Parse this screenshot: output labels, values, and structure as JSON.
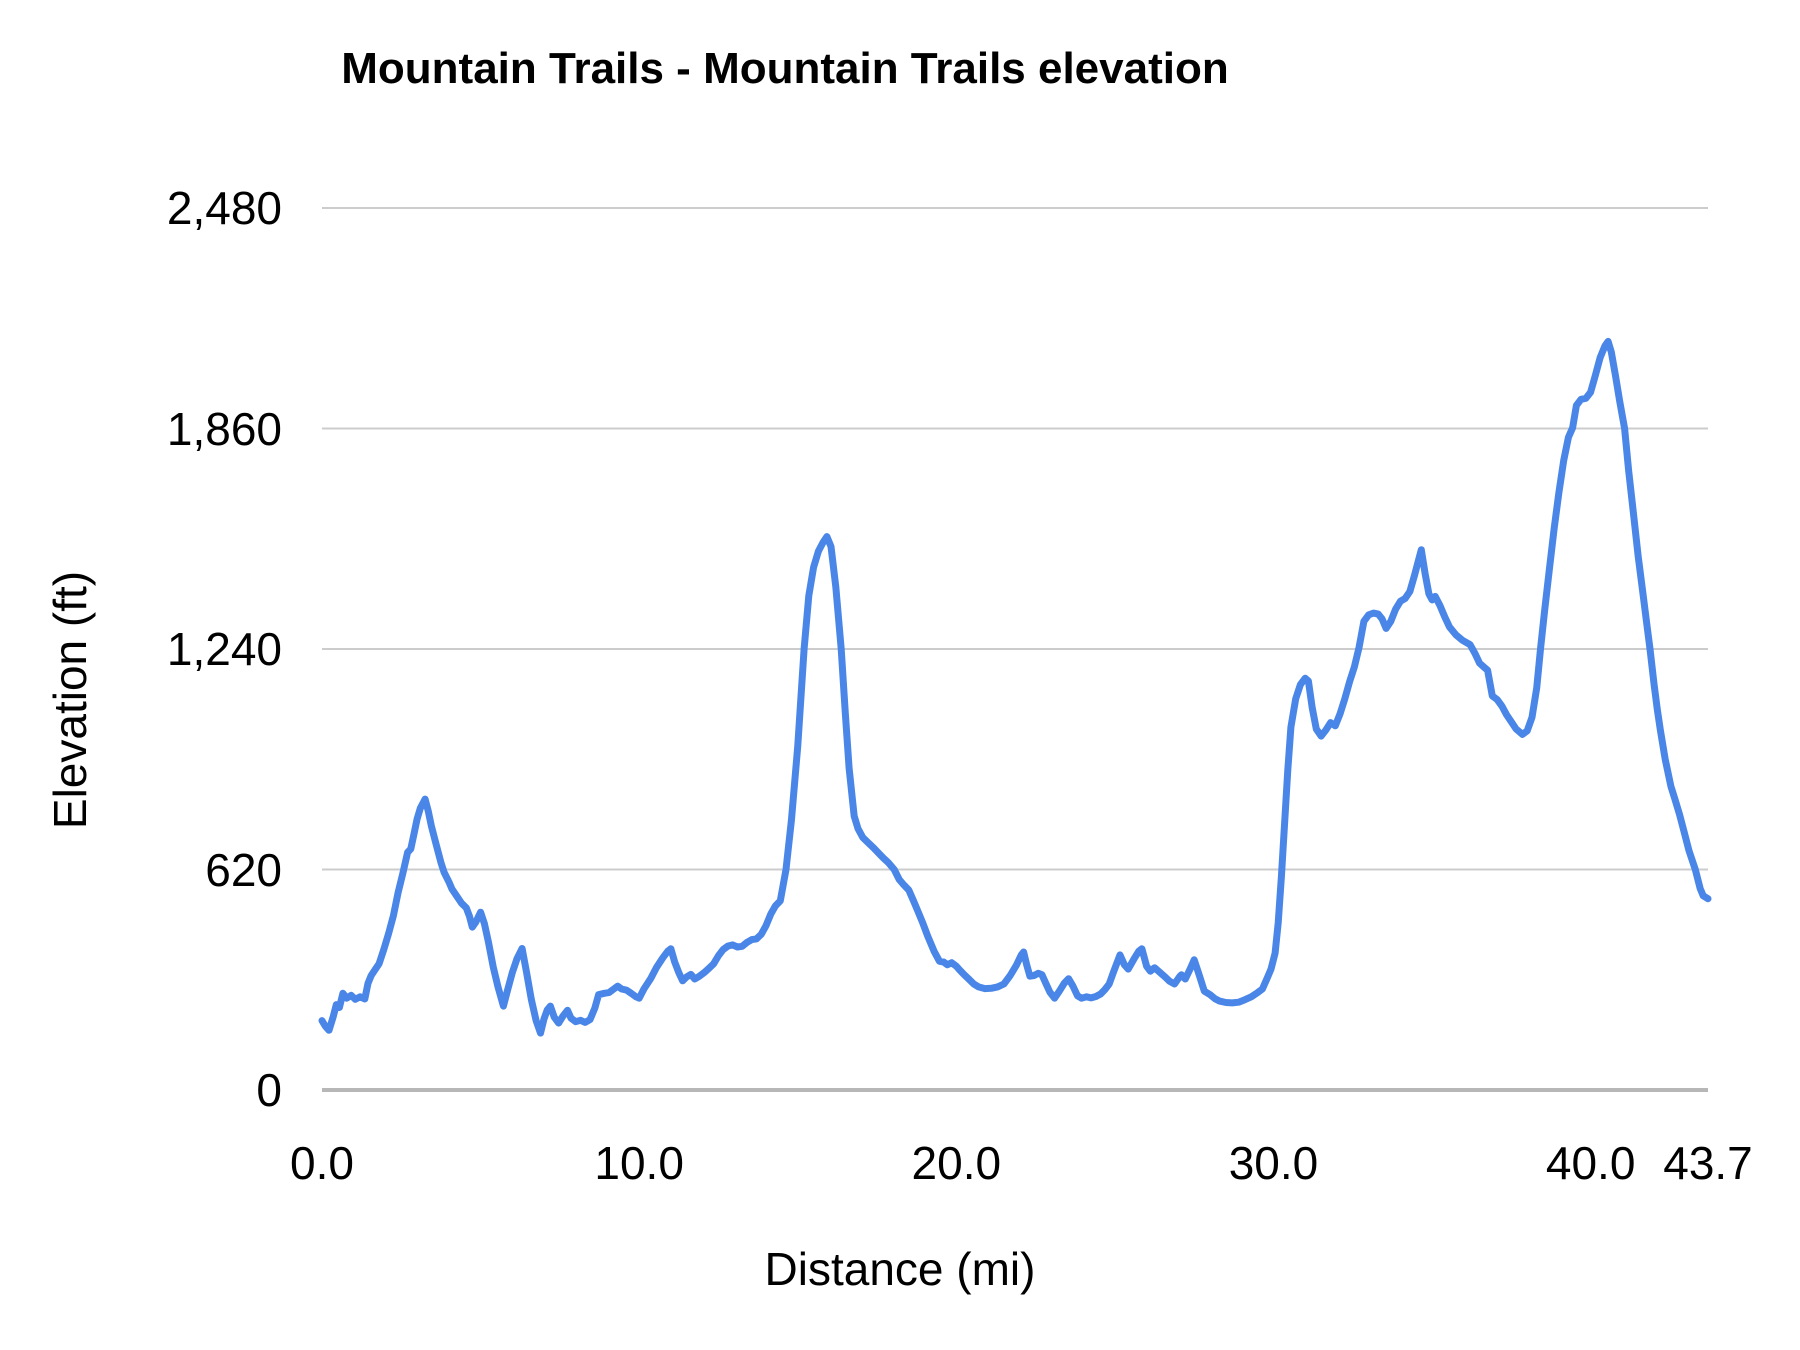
{
  "chart_data": {
    "type": "line",
    "title": "Mountain Trails - Mountain Trails elevation",
    "xlabel": "Distance (mi)",
    "ylabel": "Elevation (ft)",
    "xlim": [
      0,
      43.7
    ],
    "ylim": [
      0,
      2480
    ],
    "x_ticks": [
      "0.0",
      "10.0",
      "20.0",
      "30.0",
      "40.0",
      "43.7"
    ],
    "x_tick_values": [
      0,
      10,
      20,
      30,
      40,
      43.7
    ],
    "y_ticks": [
      "0",
      "620",
      "1,240",
      "1,860",
      "2,480"
    ],
    "y_tick_values": [
      0,
      620,
      1240,
      1860,
      2480
    ],
    "grid": "horizontal",
    "legend": "none",
    "line_color": "#4a86e8",
    "gridline_color": "#cccccc",
    "baseline_color": "#b7b7b7",
    "series": [
      {
        "name": "Mountain Trails elevation",
        "points": [
          [
            0.0,
            195
          ],
          [
            0.1,
            180
          ],
          [
            0.22,
            168
          ],
          [
            0.35,
            205
          ],
          [
            0.45,
            240
          ],
          [
            0.55,
            232
          ],
          [
            0.66,
            272
          ],
          [
            0.78,
            258
          ],
          [
            0.92,
            266
          ],
          [
            1.05,
            255
          ],
          [
            1.2,
            262
          ],
          [
            1.35,
            256
          ],
          [
            1.45,
            300
          ],
          [
            1.55,
            322
          ],
          [
            1.7,
            342
          ],
          [
            1.8,
            355
          ],
          [
            1.95,
            395
          ],
          [
            2.1,
            440
          ],
          [
            2.25,
            490
          ],
          [
            2.4,
            555
          ],
          [
            2.55,
            610
          ],
          [
            2.7,
            668
          ],
          [
            2.8,
            678
          ],
          [
            2.9,
            720
          ],
          [
            3.0,
            762
          ],
          [
            3.1,
            792
          ],
          [
            3.25,
            818
          ],
          [
            3.35,
            785
          ],
          [
            3.45,
            742
          ],
          [
            3.6,
            690
          ],
          [
            3.75,
            640
          ],
          [
            3.85,
            612
          ],
          [
            4.0,
            585
          ],
          [
            4.1,
            565
          ],
          [
            4.25,
            545
          ],
          [
            4.4,
            525
          ],
          [
            4.55,
            512
          ],
          [
            4.65,
            488
          ],
          [
            4.74,
            458
          ],
          [
            4.85,
            472
          ],
          [
            5.0,
            500
          ],
          [
            5.12,
            468
          ],
          [
            5.25,
            415
          ],
          [
            5.4,
            345
          ],
          [
            5.55,
            290
          ],
          [
            5.72,
            236
          ],
          [
            5.85,
            280
          ],
          [
            6.0,
            330
          ],
          [
            6.15,
            370
          ],
          [
            6.31,
            398
          ],
          [
            6.45,
            330
          ],
          [
            6.6,
            255
          ],
          [
            6.75,
            195
          ],
          [
            6.89,
            160
          ],
          [
            7.0,
            200
          ],
          [
            7.1,
            225
          ],
          [
            7.2,
            236
          ],
          [
            7.32,
            205
          ],
          [
            7.46,
            188
          ],
          [
            7.6,
            208
          ],
          [
            7.74,
            224
          ],
          [
            7.85,
            202
          ],
          [
            8.0,
            192
          ],
          [
            8.15,
            196
          ],
          [
            8.3,
            190
          ],
          [
            8.45,
            198
          ],
          [
            8.6,
            230
          ],
          [
            8.72,
            268
          ],
          [
            8.9,
            272
          ],
          [
            9.05,
            274
          ],
          [
            9.2,
            284
          ],
          [
            9.32,
            292
          ],
          [
            9.45,
            284
          ],
          [
            9.6,
            281
          ],
          [
            9.75,
            272
          ],
          [
            9.9,
            262
          ],
          [
            10.0,
            258
          ],
          [
            10.15,
            284
          ],
          [
            10.36,
            313
          ],
          [
            10.55,
            345
          ],
          [
            10.75,
            372
          ],
          [
            10.9,
            390
          ],
          [
            11.0,
            397
          ],
          [
            11.12,
            360
          ],
          [
            11.25,
            330
          ],
          [
            11.37,
            307
          ],
          [
            11.5,
            318
          ],
          [
            11.63,
            325
          ],
          [
            11.75,
            312
          ],
          [
            11.9,
            320
          ],
          [
            12.05,
            330
          ],
          [
            12.2,
            342
          ],
          [
            12.35,
            355
          ],
          [
            12.5,
            378
          ],
          [
            12.65,
            395
          ],
          [
            12.8,
            405
          ],
          [
            12.95,
            408
          ],
          [
            13.1,
            402
          ],
          [
            13.25,
            404
          ],
          [
            13.4,
            415
          ],
          [
            13.55,
            423
          ],
          [
            13.7,
            425
          ],
          [
            13.85,
            438
          ],
          [
            14.0,
            462
          ],
          [
            14.15,
            495
          ],
          [
            14.3,
            518
          ],
          [
            14.45,
            532
          ],
          [
            14.63,
            620
          ],
          [
            14.8,
            758
          ],
          [
            15.0,
            965
          ],
          [
            15.2,
            1240
          ],
          [
            15.35,
            1390
          ],
          [
            15.5,
            1470
          ],
          [
            15.65,
            1515
          ],
          [
            15.8,
            1540
          ],
          [
            15.92,
            1556
          ],
          [
            16.05,
            1528
          ],
          [
            16.2,
            1415
          ],
          [
            16.37,
            1240
          ],
          [
            16.5,
            1060
          ],
          [
            16.62,
            905
          ],
          [
            16.78,
            770
          ],
          [
            16.9,
            735
          ],
          [
            17.05,
            710
          ],
          [
            17.22,
            695
          ],
          [
            17.4,
            680
          ],
          [
            17.54,
            667
          ],
          [
            17.7,
            652
          ],
          [
            17.85,
            640
          ],
          [
            18.04,
            620
          ],
          [
            18.2,
            592
          ],
          [
            18.35,
            576
          ],
          [
            18.5,
            562
          ],
          [
            18.65,
            532
          ],
          [
            18.8,
            500
          ],
          [
            18.95,
            468
          ],
          [
            19.1,
            432
          ],
          [
            19.3,
            390
          ],
          [
            19.47,
            362
          ],
          [
            19.6,
            360
          ],
          [
            19.72,
            352
          ],
          [
            19.85,
            358
          ],
          [
            20.0,
            348
          ],
          [
            20.1,
            338
          ],
          [
            20.25,
            324
          ],
          [
            20.38,
            313
          ],
          [
            20.55,
            298
          ],
          [
            20.7,
            290
          ],
          [
            20.9,
            285
          ],
          [
            21.1,
            286
          ],
          [
            21.3,
            290
          ],
          [
            21.5,
            298
          ],
          [
            21.7,
            322
          ],
          [
            21.9,
            352
          ],
          [
            22.05,
            380
          ],
          [
            22.12,
            388
          ],
          [
            22.22,
            352
          ],
          [
            22.32,
            320
          ],
          [
            22.45,
            322
          ],
          [
            22.58,
            328
          ],
          [
            22.7,
            324
          ],
          [
            22.82,
            300
          ],
          [
            22.95,
            275
          ],
          [
            23.1,
            258
          ],
          [
            23.25,
            278
          ],
          [
            23.4,
            300
          ],
          [
            23.54,
            313
          ],
          [
            23.68,
            292
          ],
          [
            23.82,
            265
          ],
          [
            23.95,
            258
          ],
          [
            24.1,
            262
          ],
          [
            24.25,
            259
          ],
          [
            24.4,
            263
          ],
          [
            24.55,
            270
          ],
          [
            24.68,
            282
          ],
          [
            24.82,
            298
          ],
          [
            24.95,
            330
          ],
          [
            25.16,
            380
          ],
          [
            25.3,
            352
          ],
          [
            25.42,
            340
          ],
          [
            25.6,
            368
          ],
          [
            25.75,
            390
          ],
          [
            25.85,
            397
          ],
          [
            26.0,
            348
          ],
          [
            26.12,
            334
          ],
          [
            26.25,
            344
          ],
          [
            26.4,
            332
          ],
          [
            26.58,
            318
          ],
          [
            26.72,
            306
          ],
          [
            26.88,
            298
          ],
          [
            27.05,
            320
          ],
          [
            27.1,
            324
          ],
          [
            27.22,
            312
          ],
          [
            27.38,
            342
          ],
          [
            27.5,
            366
          ],
          [
            27.65,
            325
          ],
          [
            27.82,
            278
          ],
          [
            28.0,
            268
          ],
          [
            28.15,
            257
          ],
          [
            28.3,
            250
          ],
          [
            28.5,
            246
          ],
          [
            28.7,
            245
          ],
          [
            28.9,
            247
          ],
          [
            29.1,
            254
          ],
          [
            29.3,
            262
          ],
          [
            29.5,
            274
          ],
          [
            29.65,
            284
          ],
          [
            29.8,
            314
          ],
          [
            29.92,
            340
          ],
          [
            30.05,
            385
          ],
          [
            30.15,
            470
          ],
          [
            30.25,
            600
          ],
          [
            30.35,
            750
          ],
          [
            30.45,
            900
          ],
          [
            30.55,
            1020
          ],
          [
            30.7,
            1100
          ],
          [
            30.85,
            1140
          ],
          [
            31.0,
            1158
          ],
          [
            31.1,
            1150
          ],
          [
            31.22,
            1075
          ],
          [
            31.35,
            1015
          ],
          [
            31.5,
            995
          ],
          [
            31.65,
            1012
          ],
          [
            31.8,
            1033
          ],
          [
            31.95,
            1024
          ],
          [
            32.1,
            1058
          ],
          [
            32.25,
            1100
          ],
          [
            32.4,
            1148
          ],
          [
            32.55,
            1190
          ],
          [
            32.7,
            1245
          ],
          [
            32.85,
            1318
          ],
          [
            33.0,
            1336
          ],
          [
            33.15,
            1341
          ],
          [
            33.3,
            1338
          ],
          [
            33.42,
            1325
          ],
          [
            33.55,
            1298
          ],
          [
            33.7,
            1318
          ],
          [
            33.85,
            1352
          ],
          [
            34.0,
            1374
          ],
          [
            34.15,
            1382
          ],
          [
            34.3,
            1402
          ],
          [
            34.45,
            1448
          ],
          [
            34.55,
            1482
          ],
          [
            34.66,
            1519
          ],
          [
            34.78,
            1452
          ],
          [
            34.9,
            1395
          ],
          [
            35.0,
            1378
          ],
          [
            35.1,
            1388
          ],
          [
            35.25,
            1362
          ],
          [
            35.4,
            1330
          ],
          [
            35.55,
            1302
          ],
          [
            35.75,
            1280
          ],
          [
            35.95,
            1265
          ],
          [
            36.2,
            1252
          ],
          [
            36.35,
            1228
          ],
          [
            36.5,
            1200
          ],
          [
            36.65,
            1188
          ],
          [
            36.75,
            1180
          ],
          [
            36.9,
            1108
          ],
          [
            37.05,
            1098
          ],
          [
            37.2,
            1080
          ],
          [
            37.35,
            1055
          ],
          [
            37.5,
            1035
          ],
          [
            37.65,
            1015
          ],
          [
            37.85,
            1000
          ],
          [
            38.0,
            1010
          ],
          [
            38.15,
            1048
          ],
          [
            38.3,
            1130
          ],
          [
            38.42,
            1240
          ],
          [
            38.55,
            1350
          ],
          [
            38.7,
            1465
          ],
          [
            38.85,
            1580
          ],
          [
            39.0,
            1680
          ],
          [
            39.15,
            1770
          ],
          [
            39.3,
            1835
          ],
          [
            39.43,
            1862
          ],
          [
            39.55,
            1925
          ],
          [
            39.7,
            1942
          ],
          [
            39.85,
            1945
          ],
          [
            40.0,
            1962
          ],
          [
            40.15,
            2010
          ],
          [
            40.3,
            2060
          ],
          [
            40.45,
            2092
          ],
          [
            40.55,
            2105
          ],
          [
            40.65,
            2075
          ],
          [
            40.78,
            2010
          ],
          [
            40.92,
            1935
          ],
          [
            41.07,
            1860
          ],
          [
            41.2,
            1740
          ],
          [
            41.35,
            1620
          ],
          [
            41.5,
            1500
          ],
          [
            41.65,
            1395
          ],
          [
            41.77,
            1310
          ],
          [
            41.87,
            1240
          ],
          [
            42.0,
            1140
          ],
          [
            42.1,
            1070
          ],
          [
            42.2,
            1011
          ],
          [
            42.35,
            930
          ],
          [
            42.53,
            854
          ],
          [
            42.65,
            820
          ],
          [
            42.8,
            775
          ],
          [
            42.95,
            725
          ],
          [
            43.1,
            673
          ],
          [
            43.3,
            620
          ],
          [
            43.45,
            567
          ],
          [
            43.55,
            546
          ],
          [
            43.7,
            538
          ]
        ]
      }
    ]
  }
}
